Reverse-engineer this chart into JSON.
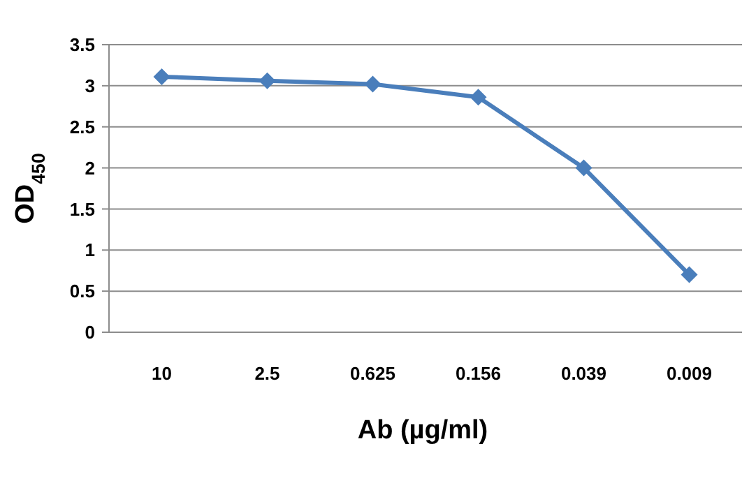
{
  "chart_data": {
    "type": "line",
    "xlabel": "Ab (µg/ml)",
    "ylabel": "OD$_{450}$",
    "categories": [
      "10",
      "2.5",
      "0.625",
      "0.156",
      "0.039",
      "0.009"
    ],
    "series": [
      {
        "color": "#4a7ebb",
        "values": [
          3.11,
          3.06,
          3.02,
          2.86,
          2.0,
          0.7
        ]
      }
    ],
    "ylim": [
      0,
      3.5
    ],
    "yticks": [
      0,
      0.5,
      1,
      1.5,
      2,
      2.5,
      3,
      3.5
    ],
    "grid": "y",
    "marker": "diamond",
    "line_style": "solid"
  }
}
